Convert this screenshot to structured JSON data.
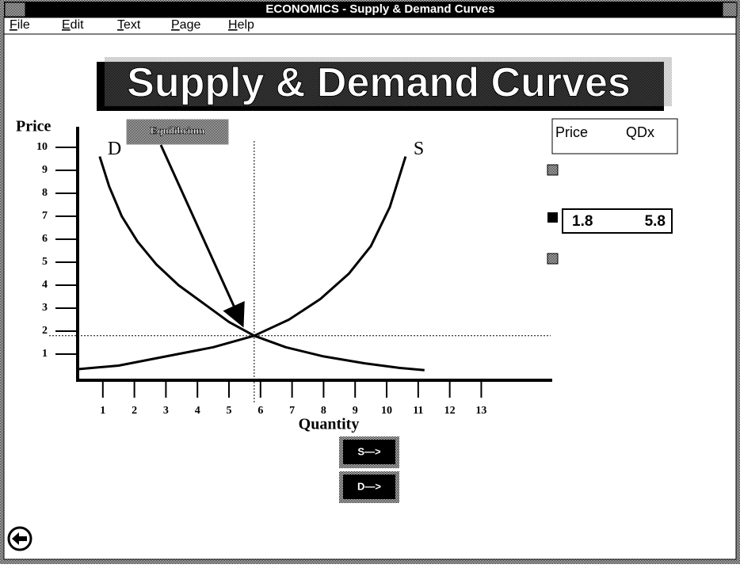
{
  "window": {
    "title": "ECONOMICS - Supply & Demand Curves",
    "menu": [
      "File",
      "Edit",
      "Text",
      "Page",
      "Help"
    ]
  },
  "chart_data": {
    "type": "line",
    "title": "Supply & Demand Curves",
    "ylabel": "Price",
    "xlabel": "Quantity",
    "annotation": "Equilibrium",
    "xlim": [
      0,
      15.2
    ],
    "ylim": [
      0,
      10.5
    ],
    "xticks": [
      1,
      2,
      3,
      4,
      5,
      6,
      7,
      8,
      9,
      10,
      11,
      12,
      13
    ],
    "yticks": [
      1,
      2,
      3,
      4,
      5,
      6,
      7,
      8,
      9,
      10
    ],
    "series": [
      {
        "name": "D",
        "color": "#000000",
        "x": [
          0.9,
          1.2,
          1.6,
          2.1,
          2.7,
          3.4,
          4.2,
          5.0,
          5.8,
          6.8,
          8.0,
          9.3,
          10.4,
          11.2
        ],
        "values": [
          9.6,
          8.3,
          7.0,
          5.9,
          4.9,
          4.0,
          3.2,
          2.4,
          1.8,
          1.3,
          0.9,
          0.6,
          0.4,
          0.3
        ]
      },
      {
        "name": "S",
        "color": "#000000",
        "x": [
          0.25,
          1.5,
          3.0,
          4.5,
          5.8,
          6.9,
          7.9,
          8.8,
          9.5,
          10.1,
          10.6
        ],
        "values": [
          0.35,
          0.5,
          0.9,
          1.3,
          1.8,
          2.5,
          3.4,
          4.5,
          5.7,
          7.4,
          9.6
        ]
      }
    ]
  },
  "table": {
    "header": [
      "Price",
      "QDx"
    ],
    "rows": [
      [
        1.8,
        5.8
      ]
    ]
  },
  "buttons": [
    "S—>",
    "D—>"
  ]
}
